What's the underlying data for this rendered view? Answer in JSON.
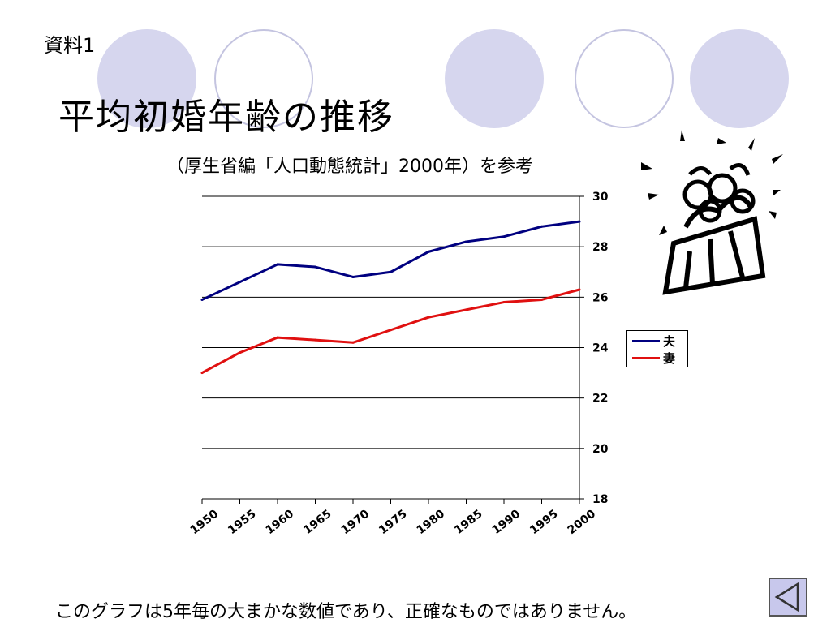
{
  "slide": {
    "label": "資料1",
    "title": "平均初婚年齢の推移",
    "subtitle": "（厚生省編「人口動態統計」2000年）を参考",
    "footnote": "このグラフは5年毎の大まかな数値であり、正確なものではありません。"
  },
  "nav": {
    "back_icon": "triangle-left-icon"
  },
  "colors": {
    "husband": "#000080",
    "wife": "#e01010",
    "deco_fill": "#d6d6ee",
    "deco_outline": "#c4c4e0"
  },
  "legend": {
    "items": [
      "夫",
      "妻"
    ]
  },
  "chart_data": {
    "type": "line",
    "title": "",
    "xlabel": "",
    "ylabel": "",
    "categories": [
      "1950",
      "1955",
      "1960",
      "1965",
      "1970",
      "1975",
      "1980",
      "1985",
      "1990",
      "1995",
      "2000"
    ],
    "x_ticks": [
      "1950",
      "1955",
      "1960",
      "1965",
      "1970",
      "1975",
      "1980",
      "1985",
      "1990",
      "1995",
      "2000"
    ],
    "series": [
      {
        "name": "夫",
        "values": [
          25.9,
          26.6,
          27.3,
          27.2,
          26.8,
          27.0,
          27.8,
          28.2,
          28.4,
          28.8,
          29.0
        ]
      },
      {
        "name": "妻",
        "values": [
          23.0,
          23.8,
          24.4,
          24.3,
          24.2,
          24.7,
          25.2,
          25.5,
          25.8,
          25.9,
          26.3
        ]
      }
    ],
    "ylim": [
      18,
      30
    ],
    "y_ticks": [
      "18",
      "20",
      "22",
      "24",
      "26",
      "28",
      "30"
    ],
    "y_axis_side": "right",
    "grid": true,
    "legend_position": "right"
  }
}
